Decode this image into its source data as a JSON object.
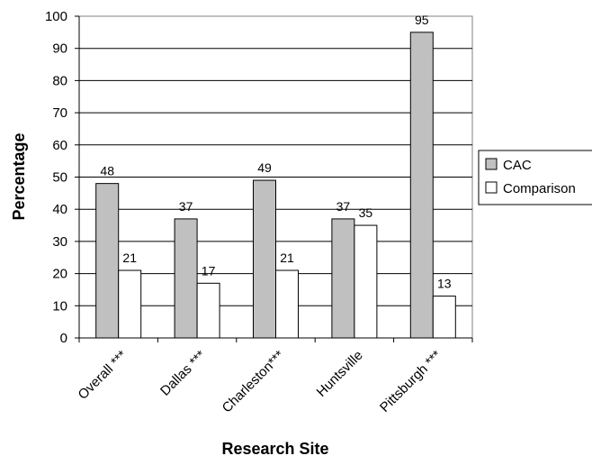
{
  "chart_data": {
    "type": "bar",
    "categories": [
      "Overall ***",
      "Dallas ***",
      "Charleston***",
      "Huntsville",
      "Pittsburgh ***"
    ],
    "series": [
      {
        "name": "CAC",
        "values": [
          48,
          37,
          49,
          37,
          95
        ],
        "color": "#c0c0c0"
      },
      {
        "name": "Comparison",
        "values": [
          21,
          17,
          21,
          35,
          13
        ],
        "color": "#ffffff"
      }
    ],
    "xlabel": "Research Site",
    "ylabel": "Percentage",
    "ylim": [
      0,
      100
    ],
    "yticks": [
      0,
      10,
      20,
      30,
      40,
      50,
      60,
      70,
      80,
      90,
      100
    ],
    "grid": true,
    "legend_position": "right"
  }
}
